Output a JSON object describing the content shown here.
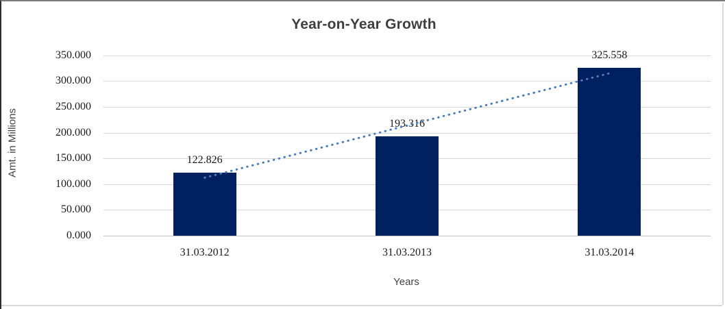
{
  "chart_data": {
    "type": "bar",
    "title": "Year-on-Year Growth",
    "categories": [
      "31.03.2012",
      "31.03.2013",
      "31.03.2014"
    ],
    "values": [
      122.826,
      193.316,
      325.558
    ],
    "data_labels": [
      "122.826",
      "193.316",
      "325.558"
    ],
    "xlabel": "Years",
    "ylabel": "Amt. in Millions",
    "ylim": [
      0,
      350
    ],
    "ytick_step": 50,
    "ytick_labels": [
      "0.000",
      "50.000",
      "100.000",
      "150.000",
      "200.000",
      "250.000",
      "300.000",
      "350.000"
    ],
    "grid": true,
    "legend_position": "none",
    "bar_color": "#002060",
    "gridline_color": "#d7d7d7",
    "trendline": {
      "type": "linear",
      "style": "dotted",
      "color": "#4a7ebb"
    }
  }
}
